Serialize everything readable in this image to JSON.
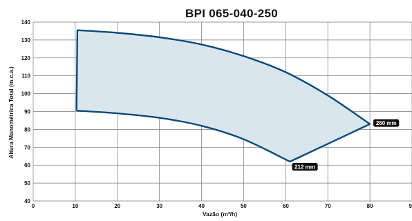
{
  "chart_data": {
    "type": "area",
    "title": "BPI 065-040-250",
    "xlabel": "Vazão (m³/h)",
    "ylabel": "Altura Manométrica Total (m.c.a.)",
    "xlim": [
      0,
      90
    ],
    "ylim": [
      40,
      140
    ],
    "xticks": [
      0,
      10,
      20,
      30,
      40,
      50,
      60,
      70,
      80,
      90
    ],
    "yticks": [
      40,
      50,
      60,
      70,
      80,
      90,
      100,
      110,
      120,
      130,
      140
    ],
    "grid": true,
    "series": [
      {
        "name": "260 mm",
        "x": [
          10.5,
          20,
          30,
          40,
          50,
          60,
          70,
          80
        ],
        "y": [
          135.5,
          134,
          131.5,
          127.5,
          121,
          112,
          99,
          83
        ]
      },
      {
        "name": "212 mm",
        "x": [
          10.5,
          20,
          30,
          40,
          50,
          61
        ],
        "y": [
          90.5,
          89,
          86.5,
          82,
          74.5,
          62
        ]
      }
    ],
    "left_edge": {
      "x": [
        10.5,
        10.3
      ],
      "y": [
        135.5,
        90.5
      ]
    },
    "right_edge": {
      "x": [
        61,
        80
      ],
      "y": [
        62,
        83
      ]
    },
    "colors": {
      "line": "#0c4a7a",
      "fill": "#d9e6ee",
      "grid": "#777777",
      "tag": "#111111"
    }
  }
}
